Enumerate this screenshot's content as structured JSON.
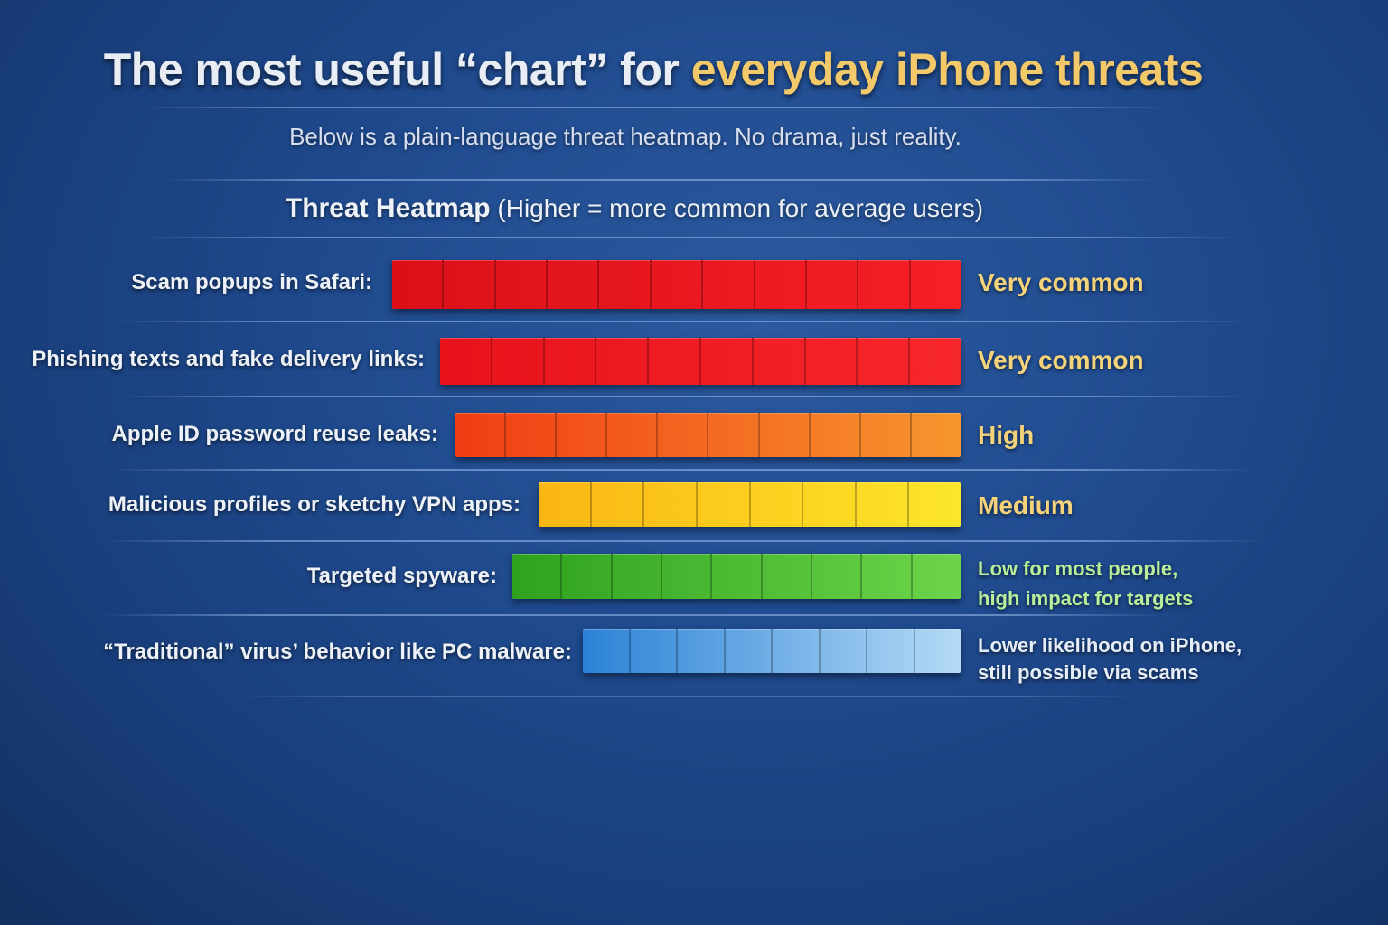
{
  "header": {
    "title_part1": "The most useful “chart” for ",
    "title_accent": "everyday iPhone threats",
    "subtitle": "Below is a plain-language threat heatmap. No drama, just reality.",
    "section_title_bold": "Threat Heatmap",
    "section_title_note": " (Higher = more common for average users)"
  },
  "colors": {
    "background": "#1f4a8e",
    "title_accent": "#f4c96a",
    "very_common": "#e8141c",
    "high": "#f26a1f",
    "medium": "#fcd41a",
    "low": "#3fb52a",
    "lower": "#4a94de"
  },
  "rows": [
    {
      "label": "Scam popups in Safari:",
      "rating": "Very common",
      "rating_line2": "",
      "segments": 11,
      "rating_color": "#f4d37a"
    },
    {
      "label": "Phishing texts and fake delivery links:",
      "rating": "Very common",
      "rating_line2": "",
      "segments": 10,
      "rating_color": "#f4d37a"
    },
    {
      "label": "Apple ID password reuse leaks:",
      "rating": "High",
      "rating_line2": "",
      "segments": 10,
      "rating_color": "#f4d37a"
    },
    {
      "label": "Malicious profiles or sketchy VPN apps:",
      "rating": "Medium",
      "rating_line2": "",
      "segments": 8,
      "rating_color": "#f4d37a"
    },
    {
      "label": "Targeted spyware:",
      "rating": "Low for most people,",
      "rating_line2": "high impact for targets",
      "segments": 9,
      "rating_color": "#b8ef9a"
    },
    {
      "label": "“Traditional” virus’ behavior like PC malware:",
      "rating": "Lower likelihood on iPhone,",
      "rating_line2": "still possible via scams",
      "segments": 8,
      "rating_color": "#e6eefa"
    }
  ],
  "chart_data": {
    "type": "heatmap",
    "title": "The most useful “chart” for everyday iPhone threats",
    "subtitle": "Below is a plain-language threat heatmap. No drama, just reality.",
    "chart_title": "Threat Heatmap (Higher = more common for average users)",
    "categories": [
      "Scam popups in Safari",
      "Phishing texts and fake delivery links",
      "Apple ID password reuse leaks",
      "Malicious profiles or sketchy VPN apps",
      "Targeted spyware",
      "“Traditional” virus’ behavior like PC malware"
    ],
    "values": [
      11,
      10,
      10,
      8,
      9,
      8
    ],
    "value_unit": "segments (bar blocks)",
    "ratings": [
      "Very common",
      "Very common",
      "High",
      "Medium",
      "Low for most people, high impact for targets",
      "Lower likelihood on iPhone, still possible via scams"
    ],
    "bar_colors": [
      "red",
      "red",
      "orange",
      "yellow",
      "green",
      "blue"
    ],
    "orientation": "horizontal",
    "bar_alignment": "right",
    "grid": false,
    "legend": "none"
  }
}
